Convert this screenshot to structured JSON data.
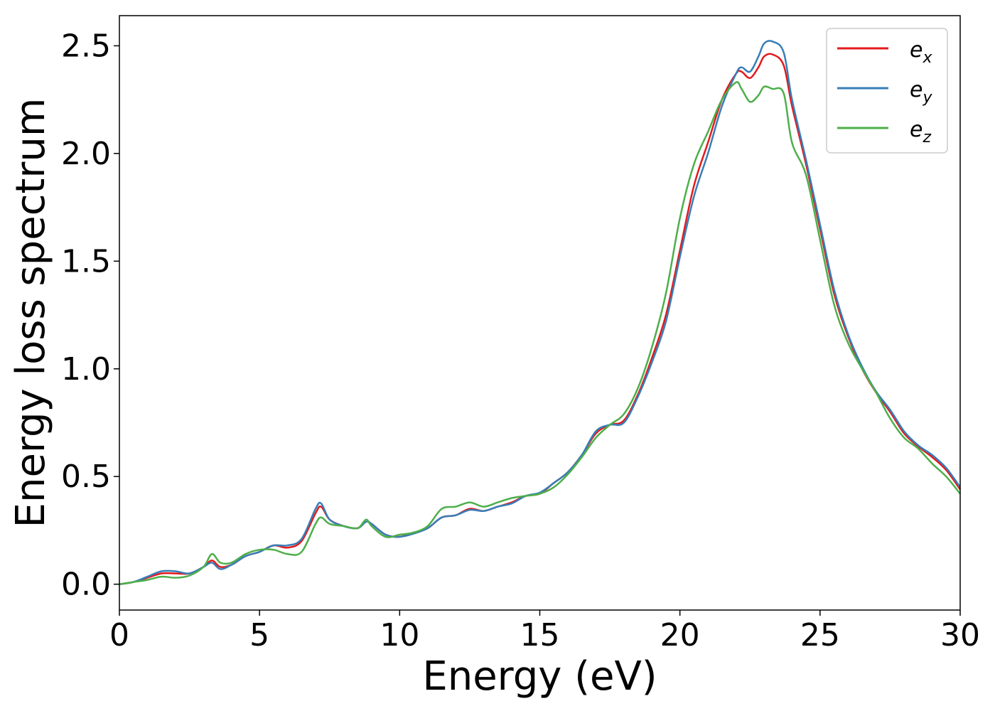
{
  "chart_data": {
    "type": "line",
    "title": "",
    "xlabel": "Energy (eV)",
    "ylabel": "Energy loss spectrum",
    "xlim": [
      0,
      30
    ],
    "ylim": [
      -0.12,
      2.64
    ],
    "xticks": [
      0,
      5,
      10,
      15,
      20,
      25,
      30
    ],
    "xtick_labels": [
      "0",
      "5",
      "10",
      "15",
      "20",
      "25",
      "30"
    ],
    "yticks": [
      0.0,
      0.5,
      1.0,
      1.5,
      2.0,
      2.5
    ],
    "ytick_labels": [
      "0.0",
      "0.5",
      "1.0",
      "1.5",
      "2.0",
      "2.5"
    ],
    "grid": false,
    "legend_position": "top-right",
    "series": [
      {
        "name": "e",
        "subscript": "x",
        "color": "#e41a1c",
        "x": [
          0,
          0.5,
          1.0,
          1.5,
          2.0,
          2.5,
          3.0,
          3.3,
          3.6,
          4.0,
          4.5,
          5.0,
          5.5,
          6.0,
          6.5,
          7.0,
          7.2,
          7.5,
          8.0,
          8.5,
          8.8,
          9.0,
          9.5,
          10.0,
          10.5,
          11.0,
          11.5,
          12.0,
          12.5,
          13.0,
          13.5,
          14.0,
          14.5,
          15.0,
          15.5,
          16.0,
          16.5,
          17.0,
          17.5,
          18.0,
          18.5,
          19.0,
          19.5,
          20.0,
          20.5,
          21.0,
          21.5,
          22.0,
          22.2,
          22.5,
          22.8,
          23.0,
          23.3,
          23.7,
          24.0,
          24.5,
          25.0,
          25.5,
          26.0,
          26.5,
          27.0,
          27.5,
          28.0,
          28.5,
          29.0,
          29.5,
          30.0
        ],
        "values": [
          0.0,
          0.01,
          0.03,
          0.05,
          0.05,
          0.05,
          0.08,
          0.11,
          0.08,
          0.09,
          0.13,
          0.15,
          0.18,
          0.17,
          0.2,
          0.33,
          0.36,
          0.3,
          0.27,
          0.26,
          0.29,
          0.28,
          0.23,
          0.22,
          0.24,
          0.26,
          0.31,
          0.32,
          0.35,
          0.34,
          0.36,
          0.38,
          0.41,
          0.42,
          0.47,
          0.52,
          0.6,
          0.7,
          0.74,
          0.76,
          0.88,
          1.05,
          1.25,
          1.55,
          1.85,
          2.05,
          2.25,
          2.37,
          2.38,
          2.35,
          2.4,
          2.45,
          2.46,
          2.41,
          2.22,
          1.95,
          1.65,
          1.35,
          1.15,
          1.0,
          0.89,
          0.8,
          0.7,
          0.64,
          0.59,
          0.53,
          0.44
        ]
      },
      {
        "name": "e",
        "subscript": "y",
        "color": "#377eb8",
        "x": [
          0,
          0.5,
          1.0,
          1.5,
          2.0,
          2.5,
          3.0,
          3.3,
          3.6,
          4.0,
          4.5,
          5.0,
          5.5,
          6.0,
          6.5,
          7.0,
          7.2,
          7.5,
          8.0,
          8.5,
          8.8,
          9.0,
          9.5,
          10.0,
          10.5,
          11.0,
          11.5,
          12.0,
          12.5,
          13.0,
          13.5,
          14.0,
          14.5,
          15.0,
          15.5,
          16.0,
          16.5,
          17.0,
          17.5,
          18.0,
          18.5,
          19.0,
          19.5,
          20.0,
          20.5,
          21.0,
          21.5,
          22.0,
          22.2,
          22.5,
          22.8,
          23.0,
          23.3,
          23.7,
          24.0,
          24.5,
          25.0,
          25.5,
          26.0,
          26.5,
          27.0,
          27.5,
          28.0,
          28.5,
          29.0,
          29.5,
          30.0
        ],
        "values": [
          0.0,
          0.01,
          0.035,
          0.06,
          0.06,
          0.05,
          0.08,
          0.1,
          0.07,
          0.09,
          0.13,
          0.15,
          0.18,
          0.18,
          0.21,
          0.35,
          0.375,
          0.3,
          0.27,
          0.26,
          0.29,
          0.28,
          0.23,
          0.22,
          0.235,
          0.26,
          0.31,
          0.32,
          0.345,
          0.34,
          0.36,
          0.375,
          0.41,
          0.425,
          0.47,
          0.52,
          0.6,
          0.71,
          0.74,
          0.75,
          0.87,
          1.03,
          1.22,
          1.52,
          1.8,
          2.0,
          2.22,
          2.37,
          2.4,
          2.38,
          2.45,
          2.51,
          2.52,
          2.47,
          2.25,
          1.97,
          1.67,
          1.37,
          1.16,
          1.01,
          0.895,
          0.81,
          0.71,
          0.645,
          0.6,
          0.54,
          0.45
        ]
      },
      {
        "name": "e",
        "subscript": "z",
        "color": "#4daf4a",
        "x": [
          0,
          0.5,
          1.0,
          1.5,
          2.0,
          2.5,
          3.0,
          3.3,
          3.6,
          4.0,
          4.5,
          5.0,
          5.5,
          6.0,
          6.5,
          7.0,
          7.2,
          7.5,
          8.0,
          8.5,
          8.8,
          9.0,
          9.5,
          10.0,
          10.5,
          11.0,
          11.5,
          12.0,
          12.5,
          13.0,
          13.5,
          14.0,
          14.5,
          15.0,
          15.5,
          16.0,
          16.5,
          17.0,
          17.5,
          18.0,
          18.5,
          19.0,
          19.5,
          20.0,
          20.5,
          21.0,
          21.5,
          22.0,
          22.2,
          22.5,
          22.8,
          23.0,
          23.3,
          23.7,
          24.0,
          24.5,
          25.0,
          25.5,
          26.0,
          26.5,
          27.0,
          27.5,
          28.0,
          28.5,
          29.0,
          29.5,
          30.0
        ],
        "values": [
          0.0,
          0.01,
          0.02,
          0.035,
          0.03,
          0.04,
          0.08,
          0.14,
          0.1,
          0.1,
          0.14,
          0.16,
          0.16,
          0.14,
          0.15,
          0.28,
          0.31,
          0.28,
          0.27,
          0.26,
          0.3,
          0.27,
          0.22,
          0.23,
          0.24,
          0.27,
          0.35,
          0.36,
          0.38,
          0.36,
          0.38,
          0.4,
          0.41,
          0.42,
          0.45,
          0.51,
          0.59,
          0.68,
          0.74,
          0.79,
          0.91,
          1.1,
          1.35,
          1.7,
          1.95,
          2.1,
          2.25,
          2.33,
          2.3,
          2.24,
          2.27,
          2.31,
          2.3,
          2.28,
          2.05,
          1.9,
          1.6,
          1.3,
          1.12,
          1.0,
          0.89,
          0.77,
          0.68,
          0.63,
          0.56,
          0.5,
          0.42
        ]
      }
    ]
  }
}
